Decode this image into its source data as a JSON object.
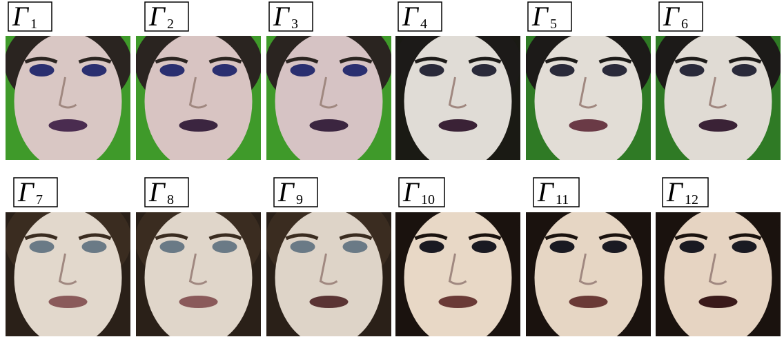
{
  "panels": [
    {
      "label": "Γ",
      "subscript": "1"
    },
    {
      "label": "Γ",
      "subscript": "2"
    },
    {
      "label": "Γ",
      "subscript": "3"
    },
    {
      "label": "Γ",
      "subscript": "4"
    },
    {
      "label": "Γ",
      "subscript": "5"
    },
    {
      "label": "Γ",
      "subscript": "6"
    },
    {
      "label": "Γ",
      "subscript": "7"
    },
    {
      "label": "Γ",
      "subscript": "8"
    },
    {
      "label": "Γ",
      "subscript": "9"
    },
    {
      "label": "Γ",
      "subscript": "10"
    },
    {
      "label": "Γ",
      "subscript": "11"
    },
    {
      "label": "Γ",
      "subscript": "12"
    }
  ]
}
